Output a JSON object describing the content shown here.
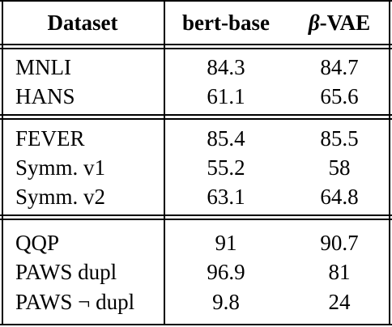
{
  "header": {
    "col1": "Dataset",
    "col2": "bert-base",
    "col3_symbol": "β",
    "col3_suffix": "-VAE"
  },
  "groups": [
    {
      "rows": [
        {
          "dataset": "MNLI",
          "bert_base": "84.3",
          "beta_vae": "84.7"
        },
        {
          "dataset": "HANS",
          "bert_base": "61.1",
          "beta_vae": "65.6"
        }
      ]
    },
    {
      "rows": [
        {
          "dataset": "FEVER",
          "bert_base": "85.4",
          "beta_vae": "85.5"
        },
        {
          "dataset": "Symm. v1",
          "bert_base": "55.2",
          "beta_vae": "58"
        },
        {
          "dataset": "Symm. v2",
          "bert_base": "63.1",
          "beta_vae": "64.8"
        }
      ]
    },
    {
      "rows": [
        {
          "dataset": "QQP",
          "bert_base": "91",
          "beta_vae": "90.7"
        },
        {
          "dataset": "PAWS dupl",
          "bert_base": "96.9",
          "beta_vae": "81"
        },
        {
          "dataset": "PAWS ¬ dupl",
          "bert_base": "9.8",
          "beta_vae": "24"
        }
      ]
    }
  ]
}
